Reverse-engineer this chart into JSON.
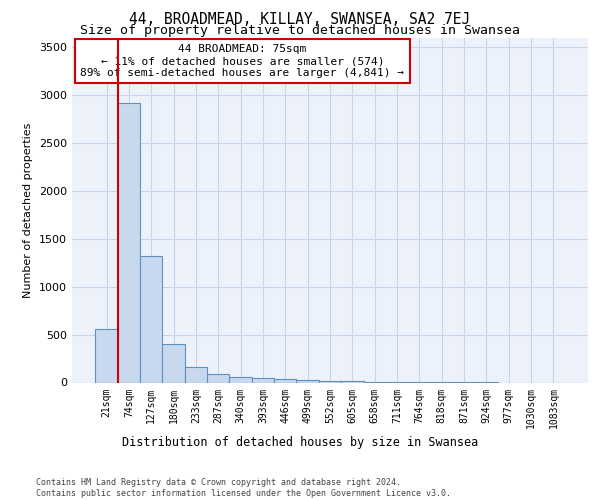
{
  "title": "44, BROADMEAD, KILLAY, SWANSEA, SA2 7EJ",
  "subtitle": "Size of property relative to detached houses in Swansea",
  "xlabel_bottom": "Distribution of detached houses by size in Swansea",
  "ylabel": "Number of detached properties",
  "bar_labels": [
    "21sqm",
    "74sqm",
    "127sqm",
    "180sqm",
    "233sqm",
    "287sqm",
    "340sqm",
    "393sqm",
    "446sqm",
    "499sqm",
    "552sqm",
    "605sqm",
    "658sqm",
    "711sqm",
    "764sqm",
    "818sqm",
    "871sqm",
    "924sqm",
    "977sqm",
    "1030sqm",
    "1083sqm"
  ],
  "bar_values": [
    560,
    2920,
    1320,
    400,
    165,
    90,
    60,
    50,
    40,
    30,
    18,
    12,
    8,
    5,
    3,
    2,
    1,
    1,
    0,
    0,
    0
  ],
  "bar_color": "#c8d8ee",
  "bar_edgecolor": "#6090c0",
  "property_line_color": "#cc0000",
  "annotation_text": "44 BROADMEAD: 75sqm\n← 11% of detached houses are smaller (574)\n89% of semi-detached houses are larger (4,841) →",
  "annotation_box_color": "#cc0000",
  "ylim": [
    0,
    3600
  ],
  "yticks": [
    0,
    500,
    1000,
    1500,
    2000,
    2500,
    3000,
    3500
  ],
  "grid_color": "#c8d4e8",
  "bg_color": "#edf2fa",
  "footer": "Contains HM Land Registry data © Crown copyright and database right 2024.\nContains public sector information licensed under the Open Government Licence v3.0.",
  "title_fontsize": 10.5,
  "subtitle_fontsize": 9.5
}
